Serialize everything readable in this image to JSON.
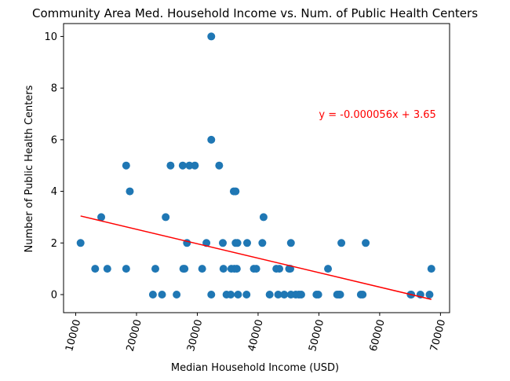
{
  "chart_data": {
    "type": "scatter",
    "title": "Community Area Med. Household Income vs. Num. of Public Health Centers",
    "xlabel": "Median Household Income (USD)",
    "ylabel": "Number of Public Health Centers",
    "xlim": [
      8000,
      71500
    ],
    "ylim": [
      -0.7,
      10.5
    ],
    "xticks": [
      10000,
      20000,
      30000,
      40000,
      50000,
      60000,
      70000
    ],
    "yticks": [
      0,
      2,
      4,
      6,
      8,
      10
    ],
    "point_color": "#1f77b4",
    "line_color": "#ff0000",
    "regression": {
      "slope": -5.6e-05,
      "intercept": 3.65,
      "x_range": [
        10800,
        68500
      ],
      "label": "y = -0.000056x + 3.65",
      "label_at": [
        50000,
        7
      ]
    },
    "points": [
      {
        "x": 10800,
        "y": 2
      },
      {
        "x": 13200,
        "y": 1
      },
      {
        "x": 14200,
        "y": 3
      },
      {
        "x": 15200,
        "y": 1
      },
      {
        "x": 18300,
        "y": 5
      },
      {
        "x": 18300,
        "y": 1
      },
      {
        "x": 18900,
        "y": 4
      },
      {
        "x": 22700,
        "y": 0
      },
      {
        "x": 23100,
        "y": 1
      },
      {
        "x": 24200,
        "y": 0
      },
      {
        "x": 24800,
        "y": 3
      },
      {
        "x": 25600,
        "y": 5
      },
      {
        "x": 26600,
        "y": 0
      },
      {
        "x": 27600,
        "y": 5
      },
      {
        "x": 27700,
        "y": 1
      },
      {
        "x": 27900,
        "y": 1
      },
      {
        "x": 28300,
        "y": 2
      },
      {
        "x": 28700,
        "y": 5
      },
      {
        "x": 29600,
        "y": 5
      },
      {
        "x": 30800,
        "y": 1
      },
      {
        "x": 31500,
        "y": 2
      },
      {
        "x": 32300,
        "y": 10
      },
      {
        "x": 32300,
        "y": 6
      },
      {
        "x": 32300,
        "y": 0
      },
      {
        "x": 33600,
        "y": 5
      },
      {
        "x": 34200,
        "y": 2
      },
      {
        "x": 34300,
        "y": 1
      },
      {
        "x": 34800,
        "y": 0
      },
      {
        "x": 35500,
        "y": 0
      },
      {
        "x": 35600,
        "y": 1
      },
      {
        "x": 36000,
        "y": 4
      },
      {
        "x": 36100,
        "y": 1
      },
      {
        "x": 36300,
        "y": 4
      },
      {
        "x": 36300,
        "y": 2
      },
      {
        "x": 36500,
        "y": 1
      },
      {
        "x": 36600,
        "y": 2
      },
      {
        "x": 36700,
        "y": 0
      },
      {
        "x": 38200,
        "y": 2
      },
      {
        "x": 38100,
        "y": 0
      },
      {
        "x": 39300,
        "y": 1
      },
      {
        "x": 39700,
        "y": 1
      },
      {
        "x": 40700,
        "y": 2
      },
      {
        "x": 40900,
        "y": 3
      },
      {
        "x": 41900,
        "y": 0
      },
      {
        "x": 43000,
        "y": 1
      },
      {
        "x": 43300,
        "y": 0
      },
      {
        "x": 43500,
        "y": 1
      },
      {
        "x": 44300,
        "y": 0
      },
      {
        "x": 45100,
        "y": 1
      },
      {
        "x": 45300,
        "y": 1
      },
      {
        "x": 45400,
        "y": 2
      },
      {
        "x": 45400,
        "y": 0
      },
      {
        "x": 46200,
        "y": 0
      },
      {
        "x": 46700,
        "y": 0
      },
      {
        "x": 47100,
        "y": 0
      },
      {
        "x": 49600,
        "y": 0
      },
      {
        "x": 49900,
        "y": 0
      },
      {
        "x": 51500,
        "y": 1
      },
      {
        "x": 53000,
        "y": 0
      },
      {
        "x": 53300,
        "y": 0
      },
      {
        "x": 53700,
        "y": 2
      },
      {
        "x": 53500,
        "y": 0
      },
      {
        "x": 56900,
        "y": 0
      },
      {
        "x": 57200,
        "y": 0
      },
      {
        "x": 57700,
        "y": 2
      },
      {
        "x": 65100,
        "y": 0
      },
      {
        "x": 65200,
        "y": 0
      },
      {
        "x": 66700,
        "y": 0
      },
      {
        "x": 68200,
        "y": 0
      },
      {
        "x": 68500,
        "y": 1
      }
    ]
  }
}
